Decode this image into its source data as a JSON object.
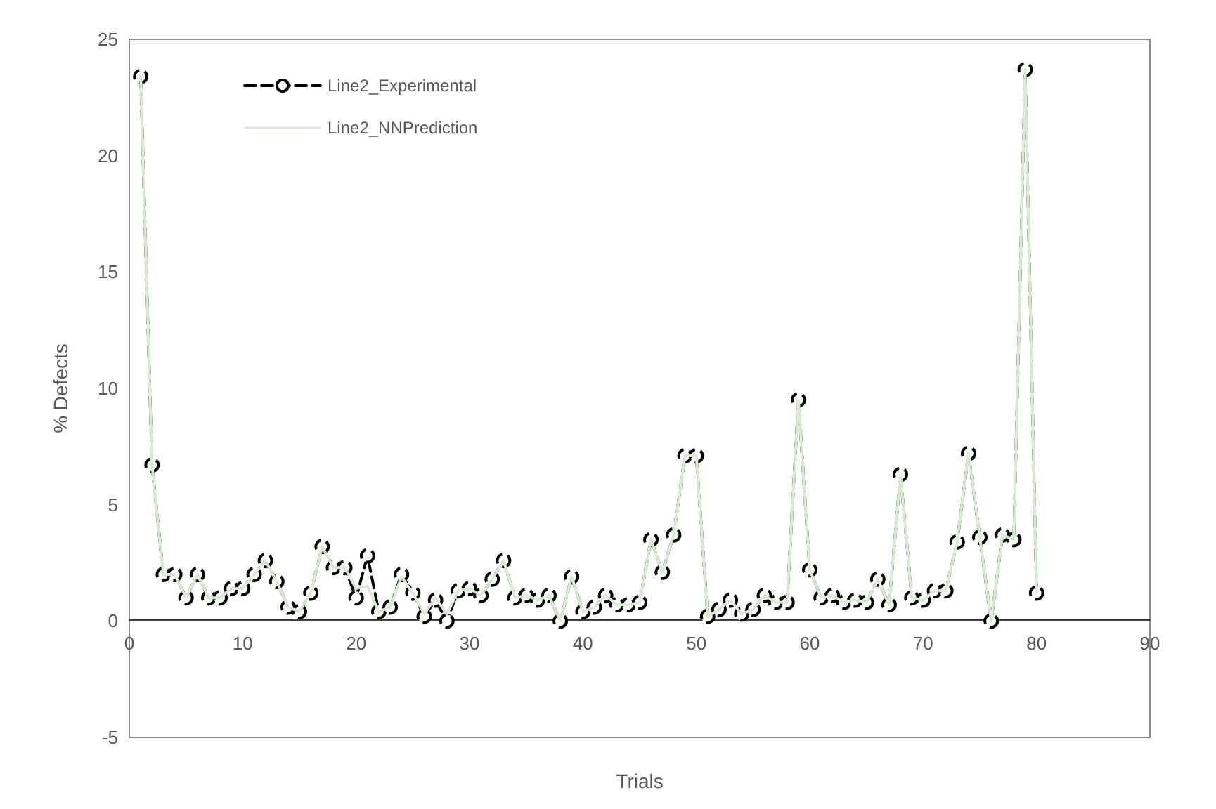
{
  "chart_data": {
    "type": "line",
    "xlabel": "Trials",
    "ylabel": "% Defects",
    "x": [
      1,
      2,
      3,
      4,
      5,
      6,
      7,
      8,
      9,
      10,
      11,
      12,
      13,
      14,
      15,
      16,
      17,
      18,
      19,
      20,
      21,
      22,
      23,
      24,
      25,
      26,
      27,
      28,
      29,
      30,
      31,
      32,
      33,
      34,
      35,
      36,
      37,
      38,
      39,
      40,
      41,
      42,
      43,
      44,
      45,
      46,
      47,
      48,
      49,
      50,
      51,
      52,
      53,
      54,
      55,
      56,
      57,
      58,
      59,
      60,
      61,
      62,
      63,
      64,
      65,
      66,
      67,
      68,
      69,
      70,
      71,
      72,
      73,
      74,
      75,
      76,
      77,
      78,
      79,
      80
    ],
    "series": [
      {
        "name": "Line2_Experimental",
        "color": "#000000",
        "marker": "circle",
        "line_style": "dashed",
        "values": [
          23.4,
          6.7,
          2.0,
          2.0,
          1.0,
          2.0,
          1.0,
          1.0,
          1.4,
          1.4,
          2.0,
          2.6,
          1.7,
          0.6,
          0.4,
          1.2,
          3.2,
          2.3,
          2.3,
          1.0,
          2.8,
          0.4,
          0.6,
          2.0,
          1.2,
          0.2,
          0.9,
          0.0,
          1.3,
          1.4,
          1.1,
          1.8,
          2.6,
          1.0,
          1.1,
          0.9,
          1.1,
          0.0,
          1.9,
          0.4,
          0.6,
          1.1,
          0.7,
          0.7,
          0.8,
          3.5,
          2.1,
          3.7,
          7.1,
          7.1,
          0.2,
          0.5,
          0.9,
          0.3,
          0.5,
          1.1,
          0.8,
          0.8,
          9.5,
          2.2,
          1.0,
          1.1,
          0.8,
          0.9,
          0.8,
          1.8,
          0.7,
          6.3,
          1.0,
          0.9,
          1.3,
          1.3,
          3.4,
          7.2,
          3.6,
          0.0,
          3.7,
          3.5,
          23.7,
          1.2
        ]
      },
      {
        "name": "Line2_NNPrediction",
        "color": "#d9ead3",
        "marker": "none",
        "line_style": "solid",
        "values": [
          23.4,
          6.7,
          2.0,
          2.0,
          1.0,
          2.0,
          1.0,
          1.0,
          1.4,
          1.4,
          2.0,
          2.6,
          1.7,
          0.6,
          0.4,
          1.2,
          3.2,
          2.3,
          2.3,
          1.4,
          1.5,
          0.4,
          0.6,
          1.9,
          1.2,
          0.3,
          1.0,
          0.3,
          1.3,
          1.4,
          1.1,
          1.8,
          2.6,
          1.0,
          1.1,
          0.9,
          1.1,
          0.0,
          1.9,
          0.4,
          0.6,
          1.1,
          0.7,
          0.7,
          0.8,
          3.5,
          2.1,
          3.7,
          7.1,
          7.1,
          0.2,
          0.5,
          0.9,
          0.3,
          0.5,
          1.1,
          0.8,
          0.8,
          9.5,
          2.2,
          1.0,
          1.1,
          0.8,
          0.9,
          0.8,
          1.8,
          0.7,
          6.3,
          1.0,
          0.9,
          1.3,
          1.3,
          3.4,
          7.2,
          3.6,
          0.0,
          3.7,
          3.5,
          23.7,
          1.2
        ]
      }
    ],
    "xlim": [
      0,
      90
    ],
    "xticks": [
      0,
      10,
      20,
      30,
      40,
      50,
      60,
      70,
      80,
      90
    ],
    "ylim": [
      -5,
      25
    ],
    "yticks": [
      -5,
      0,
      5,
      10,
      15,
      20,
      25
    ],
    "grid": false,
    "legend": "top left"
  }
}
